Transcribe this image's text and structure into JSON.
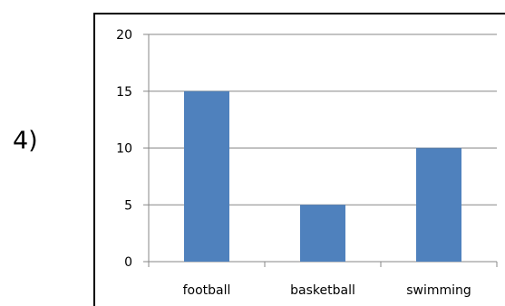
{
  "question": {
    "number": "4)"
  },
  "chart_data": {
    "type": "bar",
    "categories": [
      "football",
      "basketball",
      "swimming"
    ],
    "values": [
      15,
      5,
      10
    ],
    "ylim": [
      0,
      20
    ],
    "yticks": [
      "0",
      "5",
      "10",
      "15",
      "20"
    ],
    "grid": true,
    "bar_color": "#4f81bd",
    "grid_color": "#878787",
    "axis_color": "#878787"
  }
}
